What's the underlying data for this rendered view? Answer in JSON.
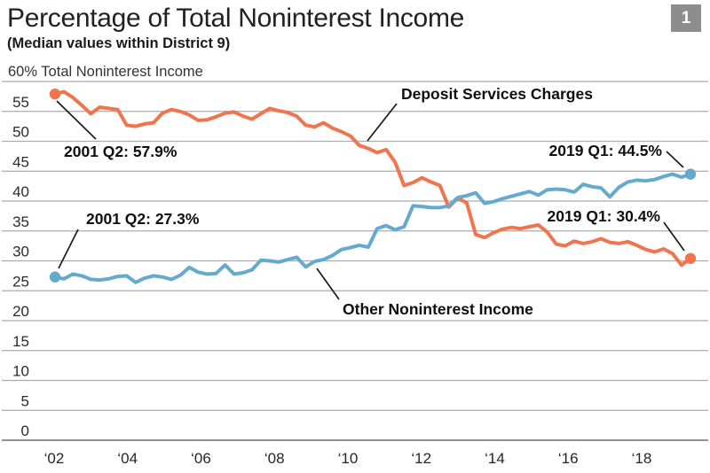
{
  "header": {
    "title": "Percentage of Total Noninterest Income",
    "subtitle": "(Median values within District 9)",
    "figure_badge": "1"
  },
  "colors": {
    "deposit_line": "#F0744D",
    "other_line": "#64AACD",
    "gridline": "#ACACAC",
    "bottom_axis": "#8f8f8f",
    "annotation_text": "#0f0f0f",
    "axis_text": "#2b2b2b",
    "badge_bg": "#8D8D8D",
    "badge_text": "#FFFFFF"
  },
  "chart_data": {
    "type": "line",
    "title": "Percentage of Total Noninterest Income",
    "subtitle": "(Median values within District 9)",
    "top_axis_label": "60% Total Noninterest Income",
    "ylim": [
      0,
      60
    ],
    "y_ticks": [
      0,
      5,
      10,
      15,
      20,
      25,
      30,
      35,
      40,
      45,
      50,
      55,
      60
    ],
    "y_tick_labels": [
      "0",
      "5",
      "10",
      "15",
      "20",
      "25",
      "30",
      "35",
      "40",
      "45",
      "50",
      "55"
    ],
    "x_tick_labels": [
      "‘02",
      "‘04",
      "‘06",
      "‘08",
      "‘10",
      "‘12",
      "‘14",
      "‘16",
      "‘18"
    ],
    "x_start": "2001 Q2",
    "x_end": "2019 Q1",
    "frequency": "quarterly",
    "grid": true,
    "legend_position": "inline-annotations",
    "series": [
      {
        "name": "Deposit Services Charges",
        "color": "#F0744D",
        "start_annotation": "2001 Q2: 57.9%",
        "end_annotation": "2019 Q1: 30.4%",
        "values": [
          57.9,
          58.3,
          57.3,
          56.0,
          54.6,
          55.7,
          55.5,
          55.3,
          52.7,
          52.5,
          52.9,
          53.1,
          54.7,
          55.3,
          55.0,
          54.4,
          53.5,
          53.6,
          54.1,
          54.7,
          54.9,
          54.2,
          53.7,
          54.6,
          55.5,
          55.1,
          54.8,
          54.2,
          52.7,
          52.4,
          53.1,
          52.2,
          51.6,
          50.9,
          49.3,
          48.8,
          48.1,
          48.6,
          46.5,
          42.6,
          43.1,
          43.9,
          43.2,
          42.6,
          39.0,
          40.5,
          39.7,
          34.4,
          33.9,
          34.7,
          35.3,
          35.6,
          35.4,
          35.7,
          36.0,
          34.8,
          32.8,
          32.5,
          33.3,
          32.9,
          33.2,
          33.7,
          33.1,
          32.9,
          33.2,
          32.6,
          31.9,
          31.5,
          32.0,
          31.2,
          29.3,
          30.4
        ]
      },
      {
        "name": "Other Noninterest Income",
        "color": "#64AACD",
        "start_annotation": "2001 Q2: 27.3%",
        "end_annotation": "2019 Q1: 44.5%",
        "values": [
          27.3,
          27.0,
          27.8,
          27.5,
          26.9,
          26.8,
          27.0,
          27.4,
          27.5,
          26.4,
          27.1,
          27.5,
          27.3,
          26.9,
          27.6,
          28.9,
          28.1,
          27.8,
          27.9,
          29.3,
          27.8,
          28.0,
          28.5,
          30.1,
          30.0,
          29.8,
          30.2,
          30.6,
          29.0,
          29.9,
          30.2,
          30.9,
          31.9,
          32.2,
          32.6,
          32.3,
          35.4,
          35.9,
          35.2,
          35.7,
          39.2,
          39.1,
          38.9,
          38.9,
          39.2,
          40.6,
          40.9,
          41.4,
          39.6,
          39.9,
          40.4,
          40.8,
          41.2,
          41.6,
          41.0,
          41.9,
          42.0,
          41.9,
          41.5,
          42.8,
          42.4,
          42.2,
          40.7,
          42.3,
          43.2,
          43.5,
          43.4,
          43.6,
          44.1,
          44.5,
          44.0,
          44.5
        ]
      }
    ]
  }
}
